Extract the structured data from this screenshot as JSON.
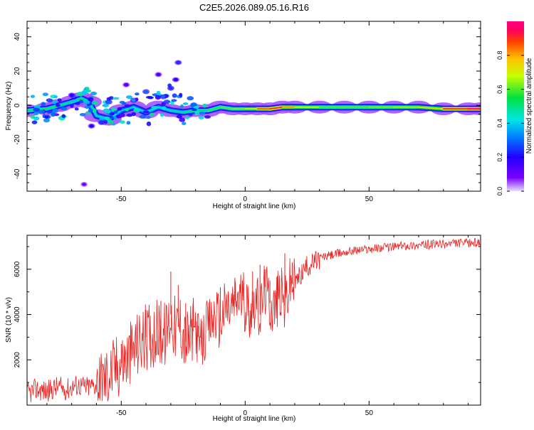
{
  "title": "C2E5.2026.089.05.16.R16",
  "colors": {
    "snr_line": "#e8201e",
    "axis": "#000000",
    "background": "#ffffff"
  },
  "chart_data": [
    {
      "type": "heatmap",
      "title": "C2E5.2026.089.05.16.R16",
      "xlabel": "Height of straight line (km)",
      "ylabel": "Frequency (Hz)",
      "xlim": [
        -88,
        95
      ],
      "ylim": [
        -50,
        49
      ],
      "xticks": [
        -50,
        0,
        50
      ],
      "xtick_labels": [
        "-50",
        "0",
        "50"
      ],
      "yticks": [
        -40,
        -20,
        0,
        20,
        40
      ],
      "ytick_labels": [
        "-40",
        "-20",
        "0",
        "20",
        "40"
      ],
      "colorbar": {
        "label": "Normalized spectral amplitude",
        "range": [
          0,
          1
        ],
        "ticks": [
          0,
          0.2,
          0.4,
          0.6,
          0.8
        ],
        "tick_labels": [
          "0.0",
          "0.2",
          "0.4",
          "0.6",
          "0.8"
        ],
        "colormap": "rainbow"
      },
      "ridge": [
        {
          "x": -88,
          "y": -3,
          "a": 0.55
        },
        {
          "x": -80,
          "y": -2,
          "a": 0.55
        },
        {
          "x": -75,
          "y": 0,
          "a": 0.5
        },
        {
          "x": -70,
          "y": 2,
          "a": 0.5
        },
        {
          "x": -66,
          "y": 4,
          "a": 0.55
        },
        {
          "x": -63,
          "y": 2,
          "a": 0.5
        },
        {
          "x": -60,
          "y": -6,
          "a": 0.45
        },
        {
          "x": -55,
          "y": -8,
          "a": 0.45
        },
        {
          "x": -50,
          "y": -3,
          "a": 0.4
        },
        {
          "x": -45,
          "y": -1,
          "a": 0.4
        },
        {
          "x": -40,
          "y": -4,
          "a": 0.45
        },
        {
          "x": -35,
          "y": -1,
          "a": 0.45
        },
        {
          "x": -30,
          "y": -3,
          "a": 0.45
        },
        {
          "x": -25,
          "y": -4,
          "a": 0.5
        },
        {
          "x": -20,
          "y": -3,
          "a": 0.5
        },
        {
          "x": -15,
          "y": -3,
          "a": 0.55
        },
        {
          "x": -10,
          "y": -1,
          "a": 0.6
        },
        {
          "x": -5,
          "y": -2,
          "a": 0.6
        },
        {
          "x": 0,
          "y": -2,
          "a": 0.65
        },
        {
          "x": 5,
          "y": -2,
          "a": 0.75
        },
        {
          "x": 10,
          "y": -2,
          "a": 0.95
        },
        {
          "x": 15,
          "y": -1,
          "a": 0.85
        },
        {
          "x": 20,
          "y": -1,
          "a": 0.75
        },
        {
          "x": 30,
          "y": -1,
          "a": 0.6
        },
        {
          "x": 40,
          "y": -1,
          "a": 0.6
        },
        {
          "x": 50,
          "y": -1,
          "a": 0.6
        },
        {
          "x": 60,
          "y": -1,
          "a": 0.65
        },
        {
          "x": 70,
          "y": -1,
          "a": 0.65
        },
        {
          "x": 80,
          "y": -2,
          "a": 0.8
        },
        {
          "x": 90,
          "y": -2,
          "a": 1.0
        },
        {
          "x": 95,
          "y": -2,
          "a": 1.0
        }
      ],
      "clusters": [
        {
          "x": -33,
          "y": 5,
          "a": 0.3
        },
        {
          "x": -30,
          "y": 10,
          "a": 0.25
        },
        {
          "x": -28,
          "y": 15,
          "a": 0.2
        },
        {
          "x": -27,
          "y": 25,
          "a": 0.25
        },
        {
          "x": -35,
          "y": 18,
          "a": 0.15
        },
        {
          "x": -40,
          "y": 8,
          "a": 0.3
        },
        {
          "x": -45,
          "y": 3,
          "a": 0.35
        },
        {
          "x": -55,
          "y": 2,
          "a": 0.3
        },
        {
          "x": -48,
          "y": 12,
          "a": 0.15
        },
        {
          "x": -62,
          "y": -12,
          "a": 0.2
        },
        {
          "x": -58,
          "y": -10,
          "a": 0.25
        },
        {
          "x": -70,
          "y": 6,
          "a": 0.2
        },
        {
          "x": -65,
          "y": -46,
          "a": 0.1
        }
      ]
    },
    {
      "type": "line",
      "xlabel": "Height of straight line (km)",
      "ylabel": "SNR (10 * v/v)",
      "xlim": [
        -88,
        95
      ],
      "ylim": [
        0,
        7500
      ],
      "xticks": [
        -50,
        0,
        50
      ],
      "xtick_labels": [
        "-50",
        "0",
        "50"
      ],
      "yticks": [
        2000,
        4000,
        6000
      ],
      "ytick_labels": [
        "2000",
        "4000",
        "6000"
      ],
      "series": [
        {
          "name": "SNR",
          "x": [
            -88,
            -84,
            -80,
            -76,
            -72,
            -68,
            -64,
            -60,
            -56,
            -52,
            -48,
            -44,
            -40,
            -36,
            -32,
            -30,
            -28,
            -26,
            -24,
            -22,
            -20,
            -18,
            -16,
            -14,
            -12,
            -10,
            -8,
            -6,
            -4,
            -2,
            0,
            2,
            4,
            6,
            8,
            10,
            12,
            14,
            16,
            18,
            20,
            22,
            24,
            26,
            28,
            30,
            34,
            38,
            42,
            46,
            50,
            55,
            60,
            65,
            70,
            75,
            80,
            85,
            90,
            95
          ],
          "y": [
            500,
            700,
            600,
            800,
            700,
            900,
            800,
            900,
            1200,
            1700,
            2000,
            2600,
            3000,
            3200,
            3100,
            4000,
            3300,
            3600,
            2800,
            3000,
            3500,
            2500,
            3200,
            3600,
            4000,
            3700,
            4300,
            4200,
            4600,
            4800,
            4500,
            4200,
            4700,
            4000,
            5200,
            4500,
            4300,
            5000,
            4400,
            5300,
            5400,
            5700,
            6000,
            6200,
            6300,
            6500,
            6600,
            6700,
            6800,
            6850,
            6900,
            6950,
            7000,
            7050,
            7050,
            7100,
            7100,
            7150,
            7150,
            7200
          ]
        }
      ],
      "spikes": [
        {
          "x": -50,
          "y": 2700
        },
        {
          "x": -40,
          "y": 4200
        },
        {
          "x": -34,
          "y": 4600
        },
        {
          "x": -30,
          "y": 5900
        },
        {
          "x": -27,
          "y": 5300
        },
        {
          "x": -24,
          "y": 4500
        },
        {
          "x": -21,
          "y": 4400
        },
        {
          "x": -19,
          "y": 3500
        },
        {
          "x": -10,
          "y": 5200
        },
        {
          "x": -4,
          "y": 5400
        },
        {
          "x": 3,
          "y": 5900
        },
        {
          "x": 6,
          "y": 6200
        },
        {
          "x": 8,
          "y": 6000
        },
        {
          "x": 10,
          "y": 5500
        },
        {
          "x": 13,
          "y": 5700
        },
        {
          "x": 16,
          "y": 6700
        },
        {
          "x": 19,
          "y": 6300
        }
      ]
    }
  ]
}
